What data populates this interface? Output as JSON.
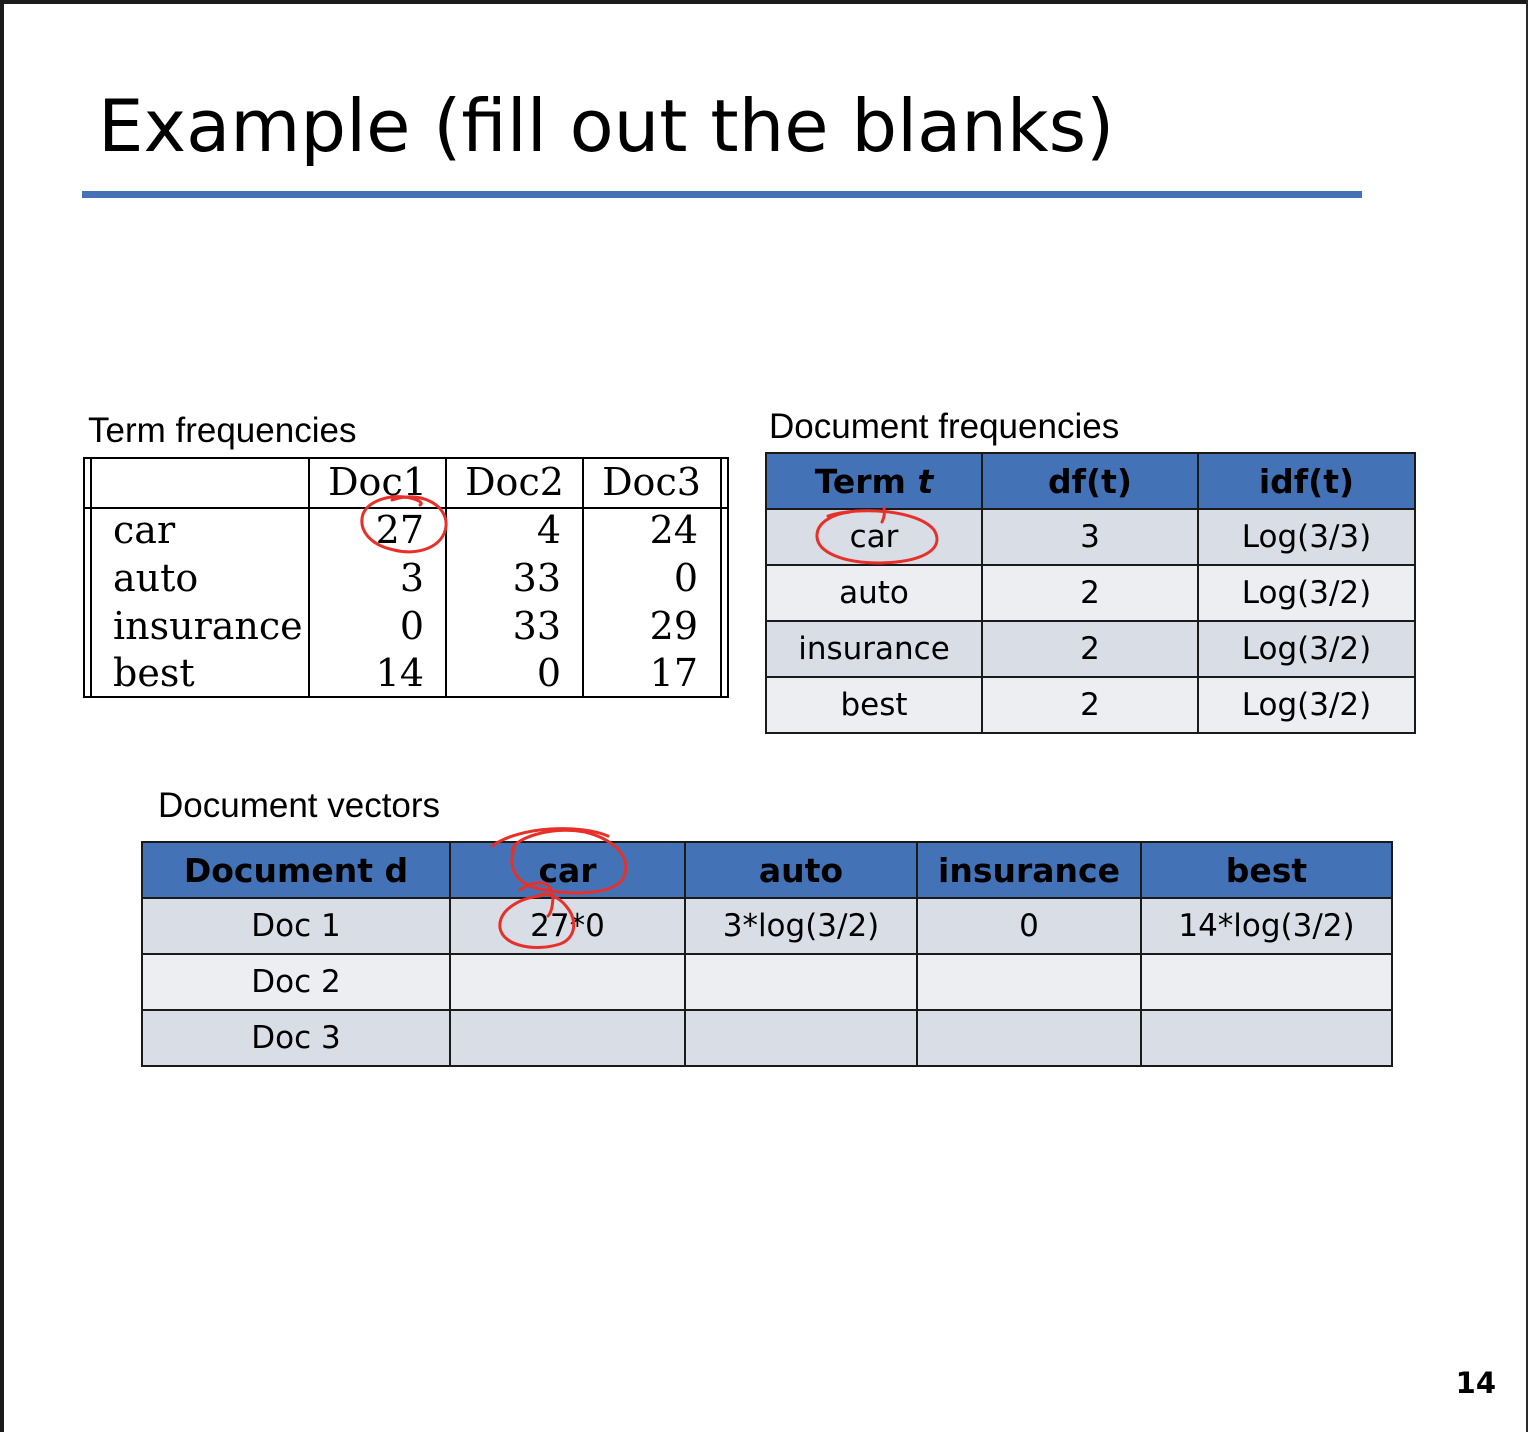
{
  "title": "Example (fill out the blanks)",
  "page_number": "14",
  "term_frequencies": {
    "caption": "Term frequencies",
    "columns": [
      "Doc1",
      "Doc2",
      "Doc3"
    ],
    "rows": [
      {
        "term": "car",
        "values": [
          "27",
          "4",
          "24"
        ]
      },
      {
        "term": "auto",
        "values": [
          "3",
          "33",
          "0"
        ]
      },
      {
        "term": "insurance",
        "values": [
          "0",
          "33",
          "29"
        ]
      },
      {
        "term": "best",
        "values": [
          "14",
          "0",
          "17"
        ]
      }
    ]
  },
  "document_frequencies": {
    "caption": "Document frequencies",
    "header": {
      "term_label": "Term ",
      "term_var": "t",
      "df": "df(t)",
      "idf": "idf(t)"
    },
    "rows": [
      {
        "term": "car",
        "df": "3",
        "idf": "Log(3/3)"
      },
      {
        "term": "auto",
        "df": "2",
        "idf": "Log(3/2)"
      },
      {
        "term": "insurance",
        "df": "2",
        "idf": "Log(3/2)"
      },
      {
        "term": "best",
        "df": "2",
        "idf": "Log(3/2)"
      }
    ]
  },
  "document_vectors": {
    "caption": "Document vectors",
    "header": [
      "Document d",
      "car",
      "auto",
      "insurance",
      "best"
    ],
    "rows": [
      {
        "doc": "Doc 1",
        "values": [
          "27*0",
          "3*log(3/2)",
          "0",
          "14*log(3/2)"
        ]
      },
      {
        "doc": "Doc 2",
        "values": [
          "",
          "",
          "",
          ""
        ]
      },
      {
        "doc": "Doc 3",
        "values": [
          "",
          "",
          "",
          ""
        ]
      }
    ]
  },
  "annotation_color": "#e8302a"
}
